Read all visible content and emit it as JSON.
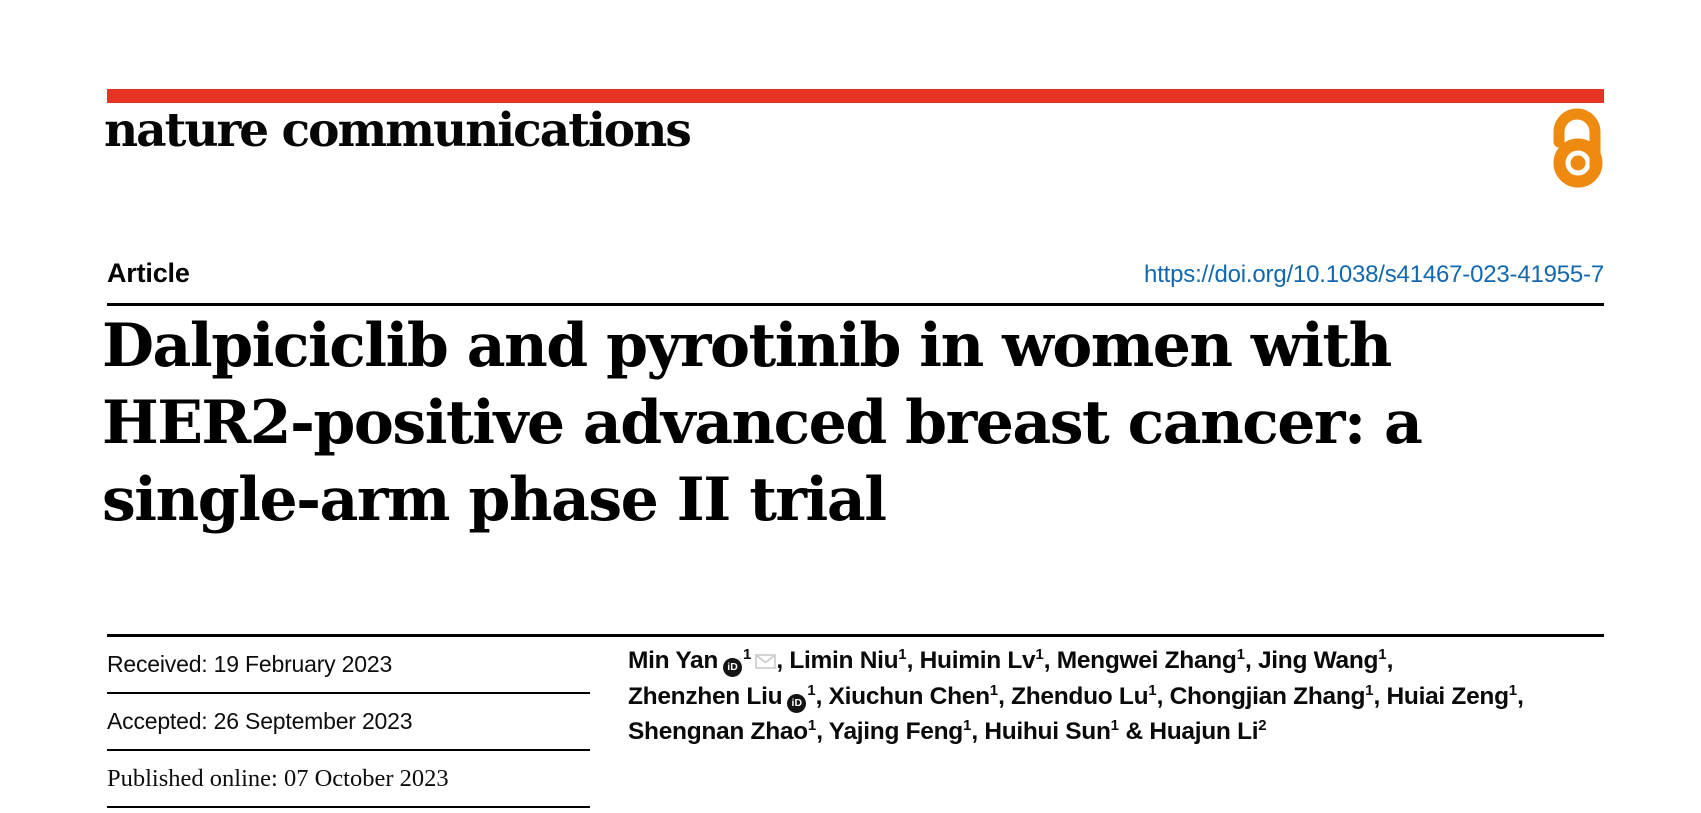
{
  "colors": {
    "accent_red": "#e63323",
    "link_blue": "#1268ae",
    "open_access_orange": "#ef8a10"
  },
  "header": {
    "logo_text": "nature communications",
    "open_access_icon": "open-access-padlock"
  },
  "article_bar": {
    "label": "Article",
    "doi": "https://doi.org/10.1038/s41467-023-41955-7"
  },
  "title_lines": [
    "Dalpiciclib and pyrotinib in women with",
    "HER2-positive advanced breast cancer: a",
    "single-arm phase II trial"
  ],
  "dates": [
    {
      "text": "Received: 19 February 2023"
    },
    {
      "text": "Accepted: 26 September 2023"
    },
    {
      "text": "Published online: 07 October 2023"
    }
  ],
  "authors": {
    "orcid_icon_label": "iD",
    "lines": [
      [
        {
          "text": "Min Yan"
        },
        {
          "icon": "orcid"
        },
        {
          "sup": "1"
        },
        {
          "icon": "mail"
        },
        {
          "text": ", Limin Niu"
        },
        {
          "sup": "1"
        },
        {
          "text": ", Huimin Lv"
        },
        {
          "sup": "1"
        },
        {
          "text": ", Mengwei Zhang"
        },
        {
          "sup": "1"
        },
        {
          "text": ", Jing Wang"
        },
        {
          "sup": "1"
        },
        {
          "text": ","
        }
      ],
      [
        {
          "text": "Zhenzhen Liu"
        },
        {
          "icon": "orcid"
        },
        {
          "sup": "1"
        },
        {
          "text": ", Xiuchun Chen"
        },
        {
          "sup": "1"
        },
        {
          "text": ", Zhenduo Lu"
        },
        {
          "sup": "1"
        },
        {
          "text": ", Chongjian Zhang"
        },
        {
          "sup": "1"
        },
        {
          "text": ", Huiai Zeng"
        },
        {
          "sup": "1"
        },
        {
          "text": ","
        }
      ],
      [
        {
          "text": "Shengnan Zhao"
        },
        {
          "sup": "1"
        },
        {
          "text": ", Yajing Feng"
        },
        {
          "sup": "1"
        },
        {
          "text": ", Huihui Sun"
        },
        {
          "sup": "1"
        },
        {
          "text": " & Huajun Li"
        },
        {
          "sup": "2"
        }
      ]
    ]
  }
}
